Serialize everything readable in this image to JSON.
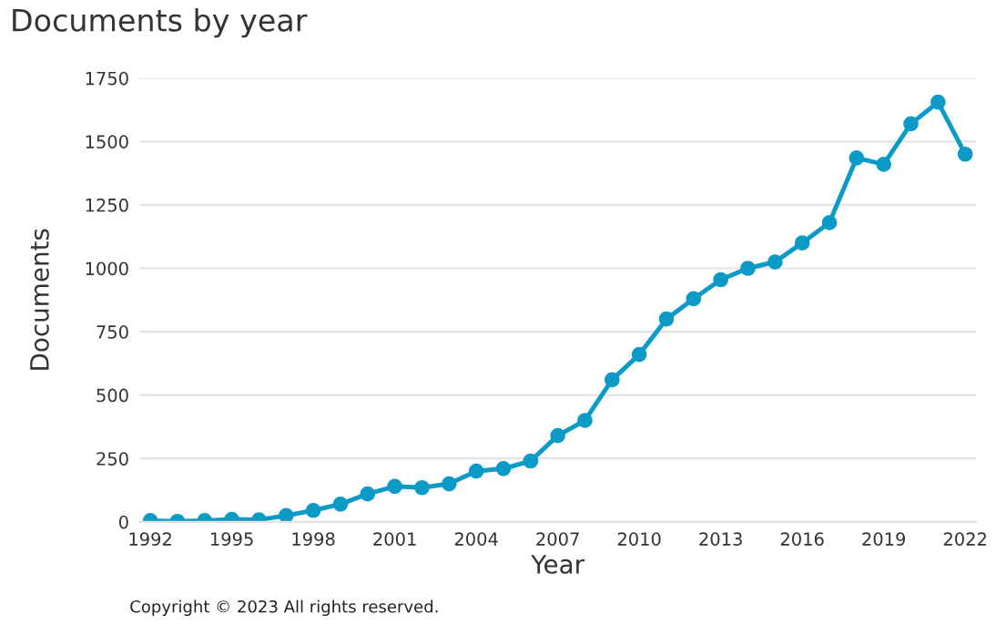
{
  "chart_data": {
    "type": "line",
    "title": "Documents by year",
    "xlabel": "Year",
    "ylabel": "Documents",
    "x": [
      1992,
      1993,
      1994,
      1995,
      1996,
      1997,
      1998,
      1999,
      2000,
      2001,
      2002,
      2003,
      2004,
      2005,
      2006,
      2007,
      2008,
      2009,
      2010,
      2011,
      2012,
      2013,
      2014,
      2015,
      2016,
      2017,
      2018,
      2019,
      2020,
      2021,
      2022
    ],
    "series": [
      {
        "color": "#0c9ac7",
        "values": [
          5,
          2,
          5,
          10,
          8,
          25,
          45,
          70,
          110,
          140,
          135,
          150,
          200,
          210,
          240,
          340,
          400,
          560,
          660,
          800,
          880,
          955,
          1000,
          1025,
          1100,
          1180,
          1435,
          1410,
          1570,
          1655,
          1450
        ]
      }
    ],
    "xlim": [
      1991.6,
      2022.4
    ],
    "xticks": [
      1992,
      1995,
      1998,
      2001,
      2004,
      2007,
      2010,
      2013,
      2016,
      2019,
      2022
    ],
    "ylim": [
      0,
      1750
    ],
    "yticks": [
      0,
      250,
      500,
      750,
      1000,
      1250,
      1500,
      1750
    ],
    "grid": "y",
    "marker": "circle",
    "line_style": "solid",
    "annotations": [
      "Copyright © 2023 All rights reserved."
    ]
  }
}
